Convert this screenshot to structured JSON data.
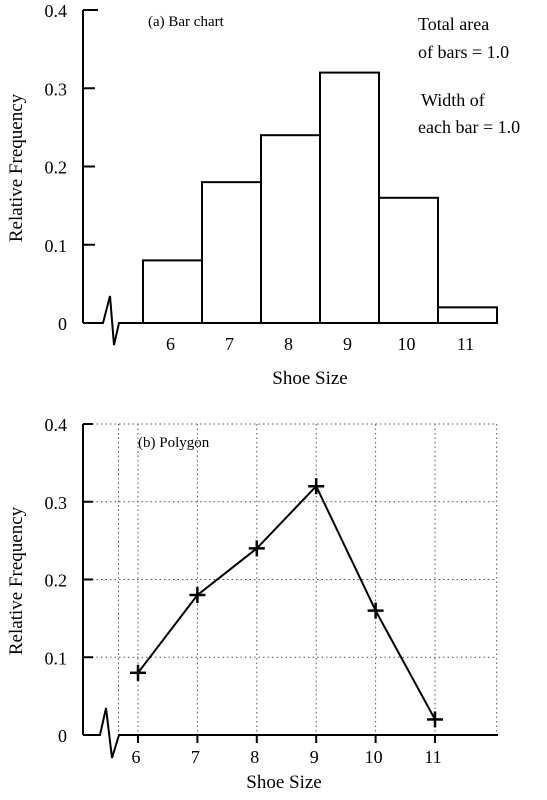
{
  "chart_data": [
    {
      "type": "bar",
      "panel_label": "(a) Bar chart",
      "categories": [
        "6",
        "7",
        "8",
        "9",
        "10",
        "11"
      ],
      "values": [
        0.08,
        0.18,
        0.24,
        0.32,
        0.16,
        0.02
      ],
      "xlabel": "Shoe Size",
      "ylabel": "Relative Frequency",
      "ylim": [
        0,
        0.4
      ],
      "yticks": [
        "0",
        "0.1",
        "0.2",
        "0.3",
        "0.4"
      ],
      "annotations": [
        "Total area",
        "of bars = 1.0",
        "Width of",
        "each bar = 1.0"
      ],
      "grid": false,
      "axis_break": true
    },
    {
      "type": "line",
      "panel_label": "(b) Polygon",
      "x": [
        6,
        7,
        8,
        9,
        10,
        11
      ],
      "xticks": [
        "6",
        "7",
        "8",
        "9",
        "10",
        "11"
      ],
      "values": [
        0.08,
        0.18,
        0.24,
        0.32,
        0.16,
        0.02
      ],
      "marker": "+",
      "xlabel": "Shoe Size",
      "ylabel": "Relative Frequency",
      "ylim": [
        0,
        0.4
      ],
      "yticks": [
        "0",
        "0.1",
        "0.2",
        "0.3",
        "0.4"
      ],
      "grid": true,
      "axis_break": true
    }
  ]
}
